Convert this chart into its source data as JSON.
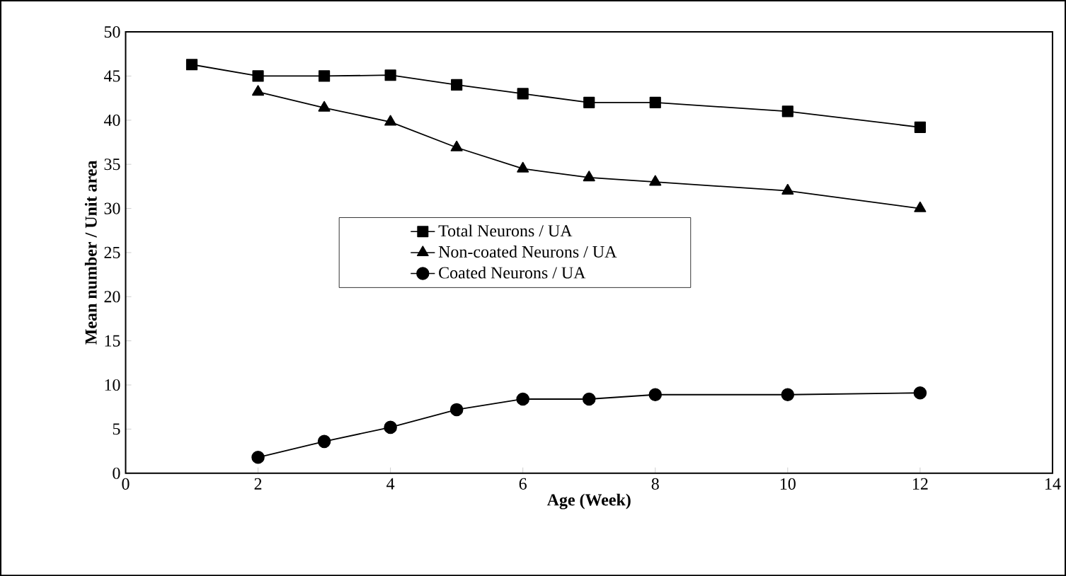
{
  "chart_data": {
    "type": "line",
    "xlabel": "Age (Week)",
    "ylabel": "Mean number / Unit area",
    "xlim": [
      0,
      14
    ],
    "xticks": [
      0,
      2,
      4,
      6,
      8,
      10,
      12,
      14
    ],
    "ylim": [
      0,
      50
    ],
    "yticks": [
      0,
      5,
      10,
      15,
      20,
      25,
      30,
      35,
      40,
      45,
      50
    ],
    "grid": false,
    "legend": "center",
    "line_style": "solid",
    "series": [
      {
        "name": "Total Neurons / UA",
        "color": "#000000",
        "marker": "square",
        "x": [
          1,
          2,
          3,
          4,
          5,
          6,
          7,
          8,
          10,
          12
        ],
        "values": [
          46.3,
          45,
          45,
          45.1,
          44,
          43,
          42,
          42,
          41,
          39.2
        ]
      },
      {
        "name": "Non-coated Neurons / UA",
        "color": "#000000",
        "marker": "triangle",
        "x": [
          2,
          3,
          4,
          5,
          6,
          7,
          8,
          10,
          12
        ],
        "values": [
          43.2,
          41.4,
          39.8,
          36.9,
          34.5,
          33.5,
          33,
          32,
          30
        ]
      },
      {
        "name": "Coated Neurons / UA",
        "color": "#000000",
        "marker": "circle",
        "x": [
          2,
          3,
          4,
          5,
          6,
          7,
          8,
          10,
          12
        ],
        "values": [
          1.8,
          3.6,
          5.2,
          7.2,
          8.4,
          8.4,
          8.9,
          8.9,
          9.1
        ]
      }
    ]
  }
}
